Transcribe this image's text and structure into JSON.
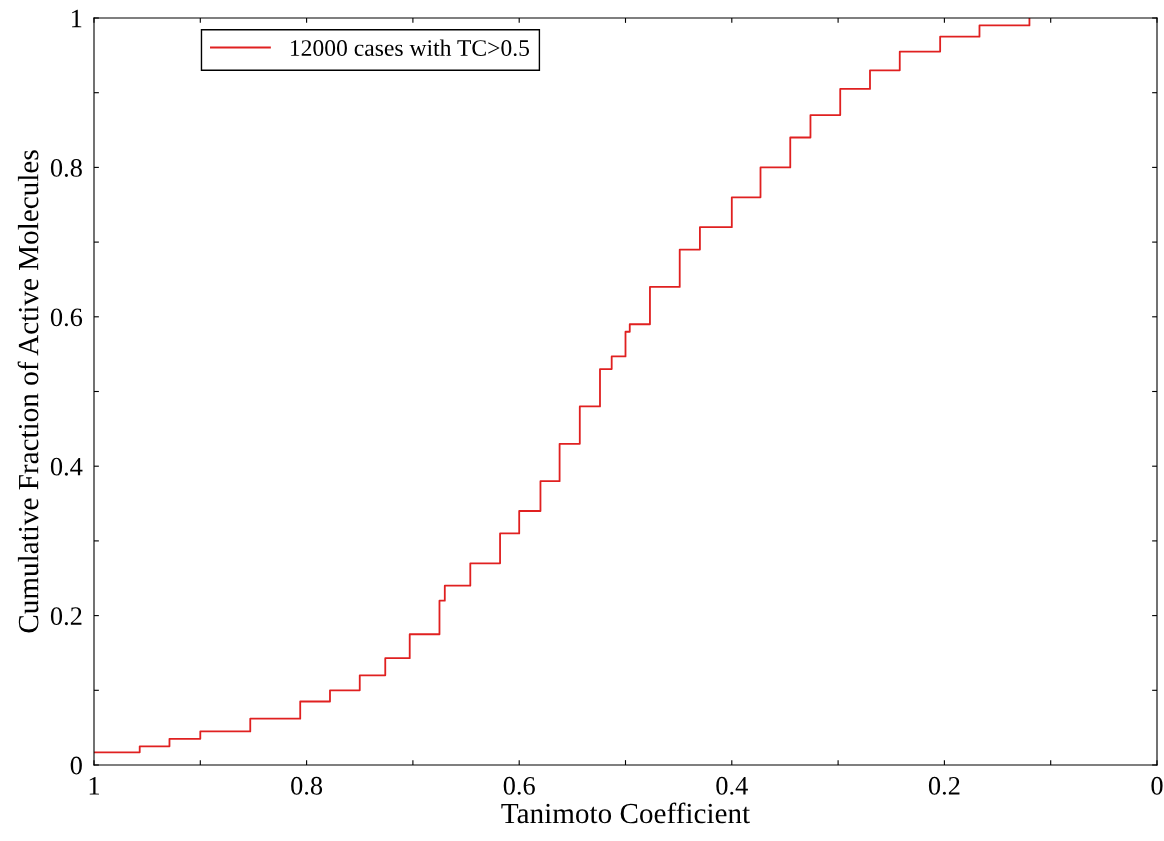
{
  "chart_data": {
    "type": "step",
    "xlabel": "Tanimoto Coefficient",
    "ylabel": "Cumulative Fraction of Active Molecules",
    "x": [
      1.0,
      0.966,
      0.957,
      0.929,
      0.9,
      0.853,
      0.806,
      0.778,
      0.75,
      0.726,
      0.703,
      0.675,
      0.67,
      0.646,
      0.618,
      0.6,
      0.58,
      0.562,
      0.543,
      0.524,
      0.513,
      0.5,
      0.496,
      0.477,
      0.449,
      0.43,
      0.4,
      0.373,
      0.345,
      0.326,
      0.298,
      0.27,
      0.242,
      0.204,
      0.167,
      0.12
    ],
    "series": [
      {
        "name": "12000 cases with TC>0.5",
        "color": "#e02020",
        "values": [
          0.017,
          0.017,
          0.025,
          0.035,
          0.045,
          0.062,
          0.085,
          0.1,
          0.12,
          0.143,
          0.175,
          0.22,
          0.24,
          0.27,
          0.31,
          0.34,
          0.38,
          0.43,
          0.48,
          0.53,
          0.547,
          0.58,
          0.59,
          0.64,
          0.69,
          0.72,
          0.76,
          0.8,
          0.84,
          0.87,
          0.905,
          0.93,
          0.955,
          0.975,
          0.99,
          1.0
        ]
      }
    ],
    "xlim": [
      1,
      0
    ],
    "ylim": [
      0,
      1
    ],
    "xticks": [
      1,
      {
        "value": 0.9,
        "label": null
      },
      0.8,
      {
        "value": 0.7,
        "label": null
      },
      0.6,
      {
        "value": 0.5,
        "label": null
      },
      0.4,
      {
        "value": 0.3,
        "label": null
      },
      0.2,
      {
        "value": 0.1,
        "label": null
      },
      0
    ],
    "yticks": [
      0,
      {
        "value": 0.1,
        "label": null
      },
      0.2,
      {
        "value": 0.3,
        "label": null
      },
      0.4,
      {
        "value": 0.5,
        "label": null
      },
      0.6,
      {
        "value": 0.7,
        "label": null
      },
      0.8,
      {
        "value": 0.9,
        "label": null
      },
      1
    ],
    "legend": "top left",
    "grid": false,
    "line_style": "solid",
    "marker": "none"
  }
}
